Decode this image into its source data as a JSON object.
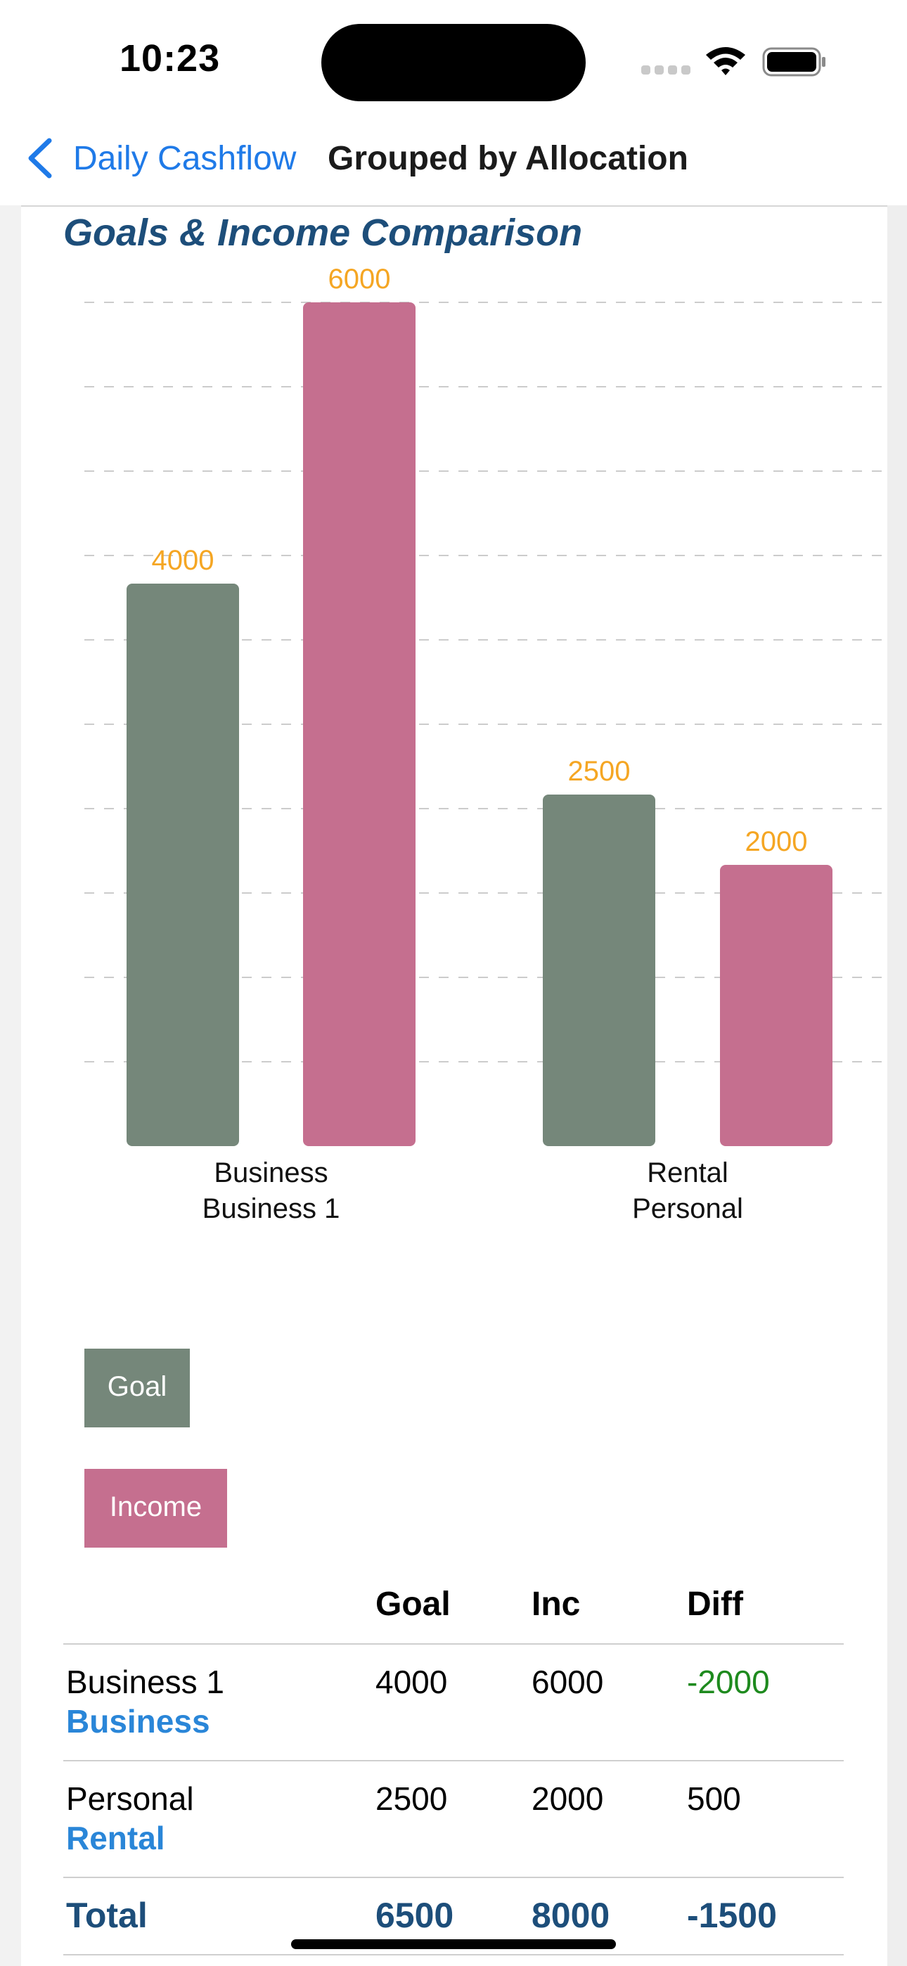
{
  "status_bar": {
    "time": "10:23"
  },
  "nav": {
    "back_label": "Daily Cashflow",
    "title": "Grouped by Allocation"
  },
  "colors": {
    "goal": "#75877a",
    "income": "#c56f8f",
    "value_label": "#f5a623",
    "title": "#1d4e7a",
    "link": "#1f7ae8",
    "negative": "#1e8a1e"
  },
  "chart_data": {
    "type": "bar",
    "title": "Goals & Income Comparison",
    "categories": [
      [
        "Business",
        "Business 1"
      ],
      [
        "Rental",
        "Personal"
      ]
    ],
    "series": [
      {
        "name": "Goal",
        "values": [
          4000,
          2500
        ]
      },
      {
        "name": "Income",
        "values": [
          6000,
          2000
        ]
      }
    ],
    "ylim": [
      0,
      6000
    ],
    "grid": true,
    "legend_position": "bottom-left"
  },
  "legend": {
    "goal": "Goal",
    "income": "Income"
  },
  "table": {
    "headers": {
      "goal": "Goal",
      "inc": "Inc",
      "diff": "Diff"
    },
    "rows": [
      {
        "name": "Business 1",
        "category": "Business",
        "goal": "4000",
        "inc": "6000",
        "diff": "-2000"
      },
      {
        "name": "Personal",
        "category": "Rental",
        "goal": "2500",
        "inc": "2000",
        "diff": "500"
      }
    ],
    "total": {
      "label": "Total",
      "goal": "6500",
      "inc": "8000",
      "diff": "-1500"
    }
  }
}
